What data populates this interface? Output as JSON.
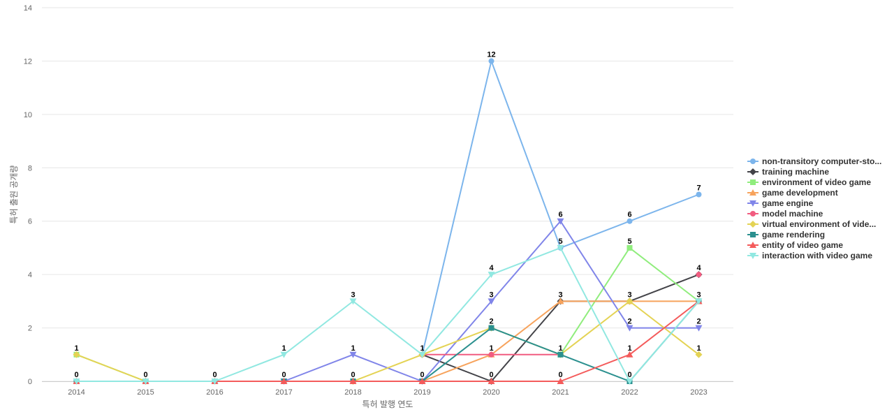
{
  "chart_data": {
    "type": "line",
    "xlabel": "특허 발행 연도",
    "ylabel": "특허 출원 공개량",
    "ylim": [
      0,
      14
    ],
    "yticks": [
      0,
      2,
      4,
      6,
      8,
      10,
      12,
      14
    ],
    "x": [
      "2014",
      "2015",
      "2016",
      "2017",
      "2018",
      "2019",
      "2020",
      "2021",
      "2022",
      "2023"
    ],
    "grid": true,
    "legend_position": "right",
    "series": [
      {
        "name": "non-transitory computer-sto...",
        "color": "#7cb5ec",
        "marker": "circle",
        "values": [
          null,
          null,
          null,
          null,
          null,
          1,
          12,
          5,
          6,
          7
        ]
      },
      {
        "name": "training machine",
        "color": "#434348",
        "marker": "diamond",
        "values": [
          null,
          null,
          null,
          null,
          null,
          1,
          0,
          3,
          3,
          4
        ]
      },
      {
        "name": "environment of video game",
        "color": "#90ed7d",
        "marker": "square",
        "values": [
          1,
          0,
          null,
          null,
          null,
          null,
          null,
          1,
          5,
          3
        ]
      },
      {
        "name": "game development",
        "color": "#f7a35c",
        "marker": "triangle",
        "values": [
          null,
          null,
          null,
          null,
          null,
          0,
          1,
          3,
          3,
          3
        ]
      },
      {
        "name": "game engine",
        "color": "#8085e9",
        "marker": "triangle-down",
        "values": [
          null,
          null,
          null,
          0,
          1,
          0,
          3,
          6,
          2,
          2
        ]
      },
      {
        "name": "model machine",
        "color": "#f15c80",
        "marker": "circle",
        "values": [
          null,
          null,
          null,
          null,
          null,
          1,
          1,
          1,
          null,
          4
        ]
      },
      {
        "name": "virtual environment of vide...",
        "color": "#e4d354",
        "marker": "diamond",
        "values": [
          1,
          0,
          null,
          null,
          0,
          1,
          2,
          1,
          3,
          1
        ]
      },
      {
        "name": "game rendering",
        "color": "#2b908f",
        "marker": "square",
        "values": [
          0,
          0,
          0,
          0,
          0,
          0,
          2,
          1,
          0,
          3
        ]
      },
      {
        "name": "entity of video game",
        "color": "#f45b5b",
        "marker": "triangle",
        "values": [
          0,
          0,
          0,
          0,
          0,
          0,
          0,
          0,
          1,
          3
        ]
      },
      {
        "name": "interaction with video game",
        "color": "#91e8e1",
        "marker": "triangle-down",
        "values": [
          0,
          0,
          0,
          1,
          3,
          1,
          4,
          5,
          0,
          3
        ]
      }
    ],
    "data_labels": [
      {
        "x": "2014",
        "y": 1,
        "text": "1"
      },
      {
        "x": "2014",
        "y": 0,
        "text": "0"
      },
      {
        "x": "2015",
        "y": 0,
        "text": "0"
      },
      {
        "x": "2016",
        "y": 0,
        "text": "0"
      },
      {
        "x": "2017",
        "y": 1,
        "text": "1"
      },
      {
        "x": "2017",
        "y": 0,
        "text": "0"
      },
      {
        "x": "2018",
        "y": 3,
        "text": "3"
      },
      {
        "x": "2018",
        "y": 1,
        "text": "1"
      },
      {
        "x": "2018",
        "y": 0,
        "text": "0"
      },
      {
        "x": "2019",
        "y": 1,
        "text": "1"
      },
      {
        "x": "2019",
        "y": 0,
        "text": "0"
      },
      {
        "x": "2020",
        "y": 12,
        "text": "12"
      },
      {
        "x": "2020",
        "y": 4,
        "text": "4"
      },
      {
        "x": "2020",
        "y": 3,
        "text": "3"
      },
      {
        "x": "2020",
        "y": 2,
        "text": "2"
      },
      {
        "x": "2020",
        "y": 1,
        "text": "1"
      },
      {
        "x": "2020",
        "y": 0,
        "text": "0"
      },
      {
        "x": "2021",
        "y": 6,
        "text": "6"
      },
      {
        "x": "2021",
        "y": 5,
        "text": "5"
      },
      {
        "x": "2021",
        "y": 3,
        "text": "3"
      },
      {
        "x": "2021",
        "y": 1,
        "text": "1"
      },
      {
        "x": "2021",
        "y": 0,
        "text": "0"
      },
      {
        "x": "2022",
        "y": 6,
        "text": "6"
      },
      {
        "x": "2022",
        "y": 5,
        "text": "5"
      },
      {
        "x": "2022",
        "y": 3,
        "text": "3"
      },
      {
        "x": "2022",
        "y": 2,
        "text": "2"
      },
      {
        "x": "2022",
        "y": 1,
        "text": "1"
      },
      {
        "x": "2022",
        "y": 0,
        "text": "0"
      },
      {
        "x": "2023",
        "y": 7,
        "text": "7"
      },
      {
        "x": "2023",
        "y": 4,
        "text": "4"
      },
      {
        "x": "2023",
        "y": 3,
        "text": "3"
      },
      {
        "x": "2023",
        "y": 2,
        "text": "2"
      },
      {
        "x": "2023",
        "y": 1,
        "text": "1"
      }
    ]
  }
}
